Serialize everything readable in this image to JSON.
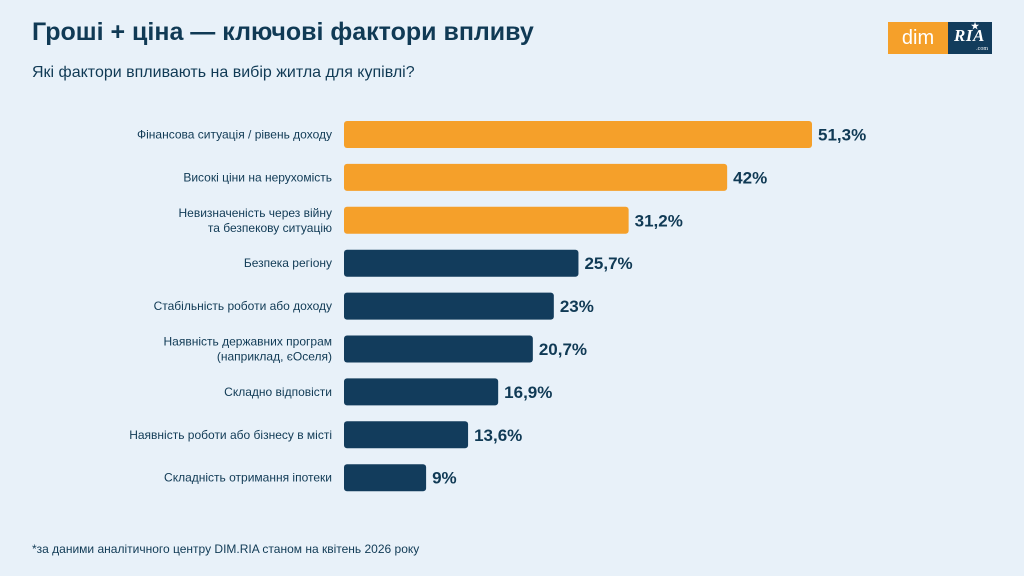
{
  "header": {
    "title": "Гроші + ціна — ключові фактори впливу",
    "subtitle": "Які фактори впливають на вибір житла для купівлі?"
  },
  "logo": {
    "dim": "dim",
    "ria": "RIA",
    "com": ".com"
  },
  "colors": {
    "background": "#e8f1f9",
    "highlight": "#f5a02a",
    "regular": "#123c5c",
    "text": "#103a55"
  },
  "chart_data": {
    "type": "bar",
    "orientation": "horizontal",
    "title": "",
    "xlabel": "",
    "ylabel": "",
    "xlim": [
      0,
      51.3
    ],
    "grid": false,
    "categories": [
      [
        "Фінансова ситуація / рівень доходу"
      ],
      [
        "Високі ціни на нерухомість"
      ],
      [
        "Невизначеність через війну",
        "та безпекову ситуацію"
      ],
      [
        "Безпека регіону"
      ],
      [
        "Стабільність роботи або доходу"
      ],
      [
        "Наявність державних програм",
        "(наприклад, єОселя)"
      ],
      [
        "Складно відповісти"
      ],
      [
        "Наявність роботи або бізнесу в місті"
      ],
      [
        "Складність отримання іпотеки"
      ]
    ],
    "values": [
      51.3,
      42,
      31.2,
      25.7,
      23,
      20.7,
      16.9,
      13.6,
      9
    ],
    "value_labels": [
      "51,3%",
      "42%",
      "31,2%",
      "25,7%",
      "23%",
      "20,7%",
      "16,9%",
      "13,6%",
      "9%"
    ],
    "highlighted": [
      true,
      true,
      true,
      false,
      false,
      false,
      false,
      false,
      false
    ]
  },
  "footnote": "*за даними аналітичного центру DIM.RIA станом на квітень 2026 року"
}
